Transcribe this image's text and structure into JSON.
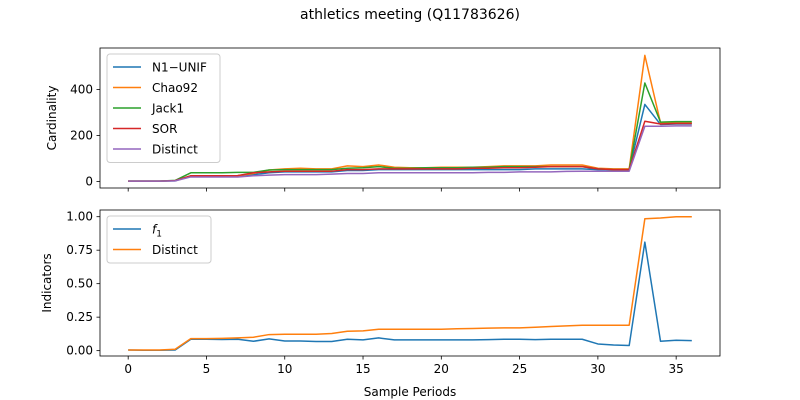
{
  "title": "athletics meeting (Q11783626)",
  "chart_data": [
    {
      "type": "line",
      "ylabel": "Cardinality",
      "xlabel": "",
      "xlim": [
        -1.8,
        37.8
      ],
      "ylim": [
        -28,
        580
      ],
      "xticks": [
        0,
        5,
        10,
        15,
        20,
        25,
        30,
        35
      ],
      "yticks": [
        0,
        200,
        400
      ],
      "legend_position": "upper-left",
      "x": [
        0,
        1,
        2,
        3,
        4,
        5,
        6,
        7,
        8,
        9,
        10,
        11,
        12,
        13,
        14,
        15,
        16,
        17,
        18,
        19,
        20,
        21,
        22,
        23,
        24,
        25,
        26,
        27,
        28,
        29,
        30,
        31,
        32,
        33,
        34,
        35,
        36
      ],
      "series": [
        {
          "name": "N1−UNIF",
          "color": "#1f77b4",
          "values": [
            2,
            2,
            2,
            3,
            25,
            25,
            25,
            26,
            30,
            38,
            42,
            42,
            42,
            42,
            48,
            48,
            52,
            52,
            52,
            52,
            52,
            52,
            52,
            52,
            52,
            52,
            55,
            55,
            55,
            55,
            52,
            52,
            52,
            335,
            248,
            250,
            250
          ]
        },
        {
          "name": "Chao92",
          "color": "#ff7f0e",
          "values": [
            2,
            2,
            2,
            4,
            25,
            25,
            25,
            26,
            35,
            50,
            55,
            58,
            55,
            55,
            68,
            65,
            72,
            62,
            60,
            60,
            62,
            62,
            62,
            65,
            68,
            68,
            68,
            72,
            72,
            72,
            58,
            55,
            55,
            548,
            255,
            255,
            255
          ]
        },
        {
          "name": "Jack1",
          "color": "#2ca02c",
          "values": [
            2,
            2,
            2,
            5,
            38,
            38,
            38,
            40,
            40,
            50,
            52,
            52,
            52,
            52,
            58,
            60,
            65,
            58,
            58,
            60,
            60,
            60,
            62,
            62,
            65,
            65,
            65,
            65,
            65,
            65,
            55,
            52,
            52,
            428,
            258,
            260,
            260
          ]
        },
        {
          "name": "SOR",
          "color": "#d62728",
          "values": [
            2,
            2,
            2,
            4,
            25,
            25,
            25,
            26,
            38,
            42,
            45,
            45,
            45,
            45,
            52,
            52,
            55,
            55,
            55,
            55,
            55,
            55,
            58,
            58,
            60,
            60,
            62,
            65,
            65,
            65,
            55,
            52,
            52,
            262,
            250,
            252,
            252
          ]
        },
        {
          "name": "Distinct",
          "color": "#9467bd",
          "values": [
            2,
            2,
            2,
            3,
            20,
            20,
            20,
            20,
            25,
            28,
            30,
            30,
            30,
            32,
            35,
            35,
            38,
            38,
            38,
            38,
            38,
            38,
            38,
            40,
            40,
            42,
            42,
            42,
            44,
            45,
            45,
            45,
            45,
            240,
            240,
            242,
            242
          ]
        }
      ]
    },
    {
      "type": "line",
      "ylabel": "Indicators",
      "xlabel": "Sample Periods",
      "xlim": [
        -1.8,
        37.8
      ],
      "ylim": [
        -0.04,
        1.05
      ],
      "xticks": [
        0,
        5,
        10,
        15,
        20,
        25,
        30,
        35
      ],
      "yticks": [
        0.0,
        0.25,
        0.5,
        0.75,
        1.0
      ],
      "ytick_labels": [
        "0.00",
        "0.25",
        "0.50",
        "0.75",
        "1.00"
      ],
      "legend_position": "upper-left",
      "x": [
        0,
        1,
        2,
        3,
        4,
        5,
        6,
        7,
        8,
        9,
        10,
        11,
        12,
        13,
        14,
        15,
        16,
        17,
        18,
        19,
        20,
        21,
        22,
        23,
        24,
        25,
        26,
        27,
        28,
        29,
        30,
        31,
        32,
        33,
        34,
        35,
        36
      ],
      "series": [
        {
          "name": "f1",
          "name_main": "f",
          "name_sub": "1",
          "color": "#1f77b4",
          "values": [
            0.005,
            0.003,
            0.003,
            0.005,
            0.085,
            0.085,
            0.083,
            0.085,
            0.07,
            0.088,
            0.072,
            0.072,
            0.068,
            0.068,
            0.085,
            0.08,
            0.095,
            0.08,
            0.08,
            0.08,
            0.08,
            0.08,
            0.08,
            0.082,
            0.085,
            0.085,
            0.082,
            0.085,
            0.085,
            0.085,
            0.05,
            0.042,
            0.038,
            0.81,
            0.07,
            0.078,
            0.075
          ]
        },
        {
          "name": "Distinct",
          "color": "#ff7f0e",
          "values": [
            0.005,
            0.005,
            0.005,
            0.01,
            0.09,
            0.09,
            0.092,
            0.095,
            0.1,
            0.12,
            0.122,
            0.122,
            0.122,
            0.128,
            0.145,
            0.148,
            0.16,
            0.16,
            0.16,
            0.16,
            0.16,
            0.163,
            0.165,
            0.168,
            0.17,
            0.17,
            0.175,
            0.18,
            0.185,
            0.19,
            0.19,
            0.19,
            0.19,
            0.985,
            0.99,
            1.0,
            1.0
          ]
        }
      ]
    }
  ]
}
